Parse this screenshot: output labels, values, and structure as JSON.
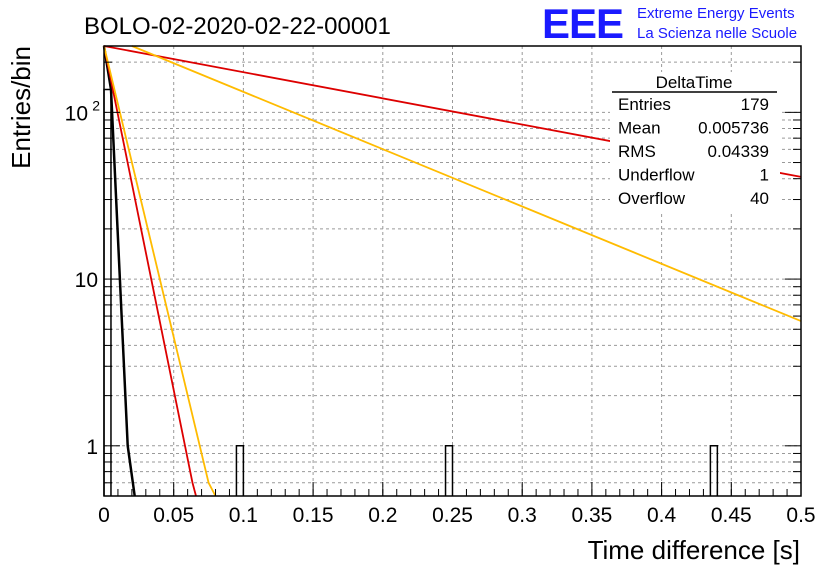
{
  "title": "BOLO-02-2020-02-22-00001",
  "logo": {
    "mark": "EEE",
    "line1": "Extreme Energy Events",
    "line2": "La Scienza nelle Scuole",
    "color": "#1a1aff"
  },
  "stats_box": {
    "name": "DeltaTime",
    "rows": [
      {
        "label": "Entries",
        "value": "179"
      },
      {
        "label": "Mean",
        "value": "0.005736"
      },
      {
        "label": "RMS",
        "value": "0.04339"
      },
      {
        "label": "Underflow",
        "value": "1"
      },
      {
        "label": "Overflow",
        "value": "40"
      }
    ]
  },
  "chart_data": {
    "type": "bar",
    "subtype": "histogram",
    "xlabel": "Time difference [s]",
    "ylabel": "Entries/bin",
    "xlim": [
      0,
      0.5
    ],
    "ylim": [
      0.5,
      250
    ],
    "yscale": "log",
    "grid": true,
    "x_ticks": [
      {
        "value": 0,
        "label": "0"
      },
      {
        "value": 0.05,
        "label": "0.05"
      },
      {
        "value": 0.1,
        "label": "0.1"
      },
      {
        "value": 0.15,
        "label": "0.15"
      },
      {
        "value": 0.2,
        "label": "0.2"
      },
      {
        "value": 0.25,
        "label": "0.25"
      },
      {
        "value": 0.3,
        "label": "0.3"
      },
      {
        "value": 0.35,
        "label": "0.35"
      },
      {
        "value": 0.4,
        "label": "0.4"
      },
      {
        "value": 0.45,
        "label": "0.45"
      },
      {
        "value": 0.5,
        "label": "0.5"
      }
    ],
    "y_major_ticks": [
      {
        "value": 1,
        "label": "1"
      },
      {
        "value": 10,
        "label": "10"
      },
      {
        "value": 100,
        "label": "10",
        "exponent": "2"
      }
    ],
    "bin_width": 0.005,
    "bins": [
      {
        "x_low": 0.0,
        "x_high": 0.005,
        "count": 137
      },
      {
        "x_low": 0.095,
        "x_high": 0.1,
        "count": 1
      },
      {
        "x_low": 0.245,
        "x_high": 0.25,
        "count": 1
      },
      {
        "x_low": 0.435,
        "x_high": 0.44,
        "count": 1
      }
    ],
    "curves": [
      {
        "color": "#000000",
        "points": [
          [
            0.0,
            250
          ],
          [
            0.005,
            137
          ],
          [
            0.017,
            1
          ],
          [
            0.022,
            0.5
          ]
        ]
      },
      {
        "color": "#dd0000",
        "points": [
          [
            0.0,
            250
          ],
          [
            0.0635,
            0.6
          ],
          [
            0.066,
            0.5
          ]
        ]
      },
      {
        "color": "#dd0000",
        "points": [
          [
            0.0,
            250
          ],
          [
            0.5,
            41
          ]
        ]
      },
      {
        "color": "#ffbb00",
        "points": [
          [
            0.0,
            250
          ],
          [
            0.075,
            0.6
          ],
          [
            0.08,
            0.5
          ]
        ]
      },
      {
        "color": "#ffbb00",
        "points": [
          [
            0.02,
            250
          ],
          [
            0.5,
            5.6
          ]
        ]
      }
    ]
  }
}
